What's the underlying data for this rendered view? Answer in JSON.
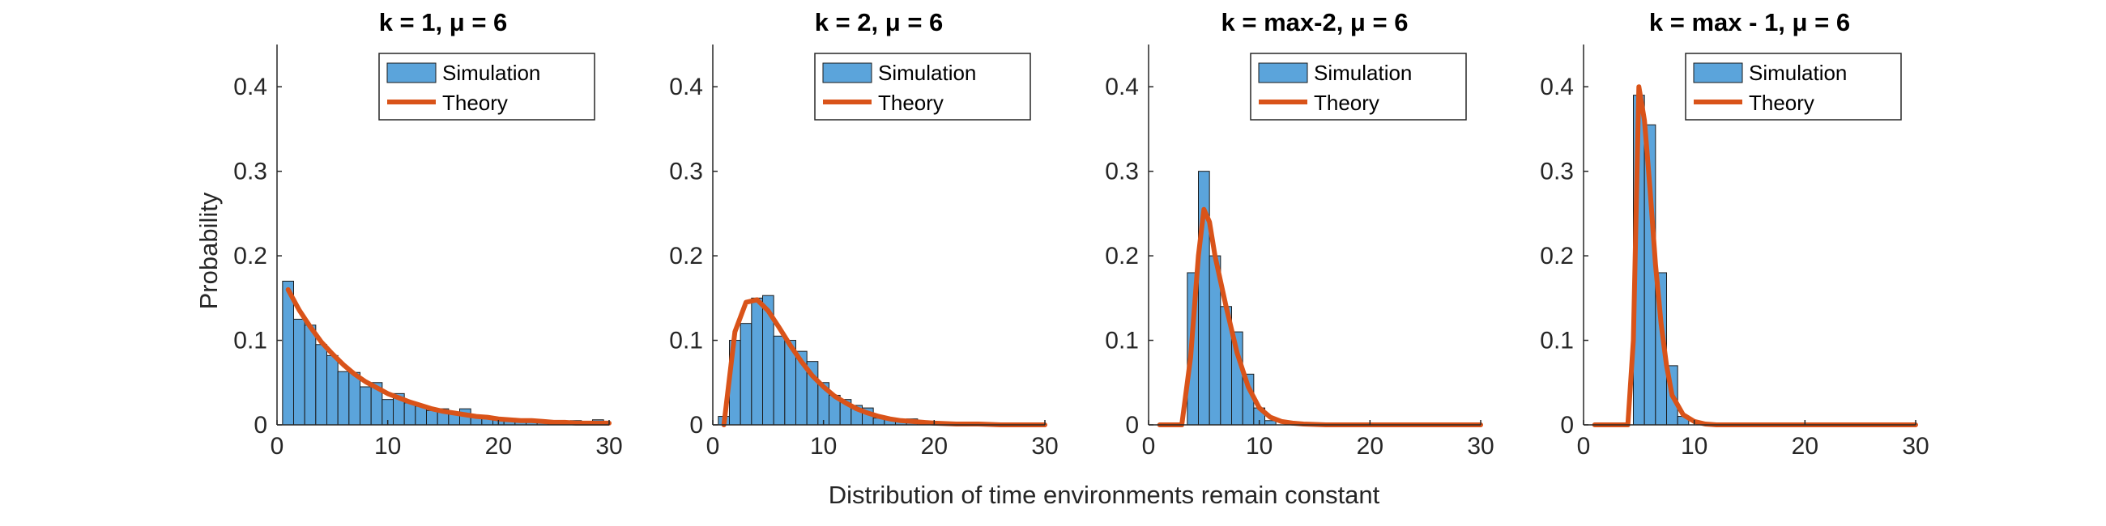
{
  "figure": {
    "xlabel": "Distribution of time environments remain constant",
    "ylabel": "Probability"
  },
  "colors": {
    "bar_fill": "#5BA4DB",
    "bar_edge": "#1a1a1a",
    "theory_line": "#D95319",
    "axis": "#262626"
  },
  "chart_data": [
    {
      "type": "bar",
      "title": "k = 1, μ = 6",
      "xlim": [
        0,
        30
      ],
      "ylim": [
        0,
        0.45
      ],
      "xticks": [
        0,
        10,
        20,
        30
      ],
      "yticks": [
        0,
        0.1,
        0.2,
        0.3,
        0.4
      ],
      "grid": false,
      "legend": {
        "placement": "top-right",
        "entries": [
          "Simulation",
          "Theory"
        ]
      },
      "series": [
        {
          "name": "Simulation",
          "type": "histogram",
          "bin_edges": [
            0.5,
            1.5,
            2.5,
            3.5,
            4.5,
            5.5,
            6.5,
            7.5,
            8.5,
            9.5,
            10.5,
            11.5,
            12.5,
            13.5,
            14.5,
            15.5,
            16.5,
            17.5,
            18.5,
            19.5,
            20.5,
            21.5,
            22.5,
            23.5,
            24.5,
            25.5,
            26.5,
            27.5,
            28.5,
            29.5
          ],
          "values": [
            0.17,
            0.125,
            0.118,
            0.095,
            0.082,
            0.063,
            0.062,
            0.045,
            0.05,
            0.03,
            0.037,
            0.026,
            0.022,
            0.017,
            0.019,
            0.015,
            0.019,
            0.01,
            0.009,
            0.006,
            0.005,
            0.004,
            0.004,
            0.005,
            0.003,
            0.003,
            0.005,
            0.002,
            0.006
          ]
        },
        {
          "name": "Theory",
          "type": "line",
          "x": [
            1,
            2,
            3,
            4,
            5,
            6,
            7,
            8,
            9,
            10,
            11,
            12,
            13,
            14,
            15,
            16,
            17,
            18,
            19,
            20,
            21,
            22,
            23,
            24,
            25,
            26,
            27,
            28,
            29,
            30
          ],
          "y": [
            0.16,
            0.136,
            0.116,
            0.098,
            0.084,
            0.071,
            0.06,
            0.051,
            0.044,
            0.037,
            0.032,
            0.027,
            0.023,
            0.019,
            0.016,
            0.014,
            0.012,
            0.01,
            0.009,
            0.007,
            0.006,
            0.005,
            0.005,
            0.004,
            0.003,
            0.003,
            0.002,
            0.002,
            0.002,
            0.002
          ]
        }
      ]
    },
    {
      "type": "bar",
      "title": "k = 2, μ = 6",
      "xlim": [
        0,
        30
      ],
      "ylim": [
        0,
        0.45
      ],
      "xticks": [
        0,
        10,
        20,
        30
      ],
      "yticks": [
        0,
        0.1,
        0.2,
        0.3,
        0.4
      ],
      "grid": false,
      "legend": {
        "placement": "top-right",
        "entries": [
          "Simulation",
          "Theory"
        ]
      },
      "series": [
        {
          "name": "Simulation",
          "type": "histogram",
          "bin_edges": [
            0.5,
            1.5,
            2.5,
            3.5,
            4.5,
            5.5,
            6.5,
            7.5,
            8.5,
            9.5,
            10.5,
            11.5,
            12.5,
            13.5,
            14.5,
            15.5,
            16.5,
            17.5,
            18.5
          ],
          "values": [
            0.01,
            0.1,
            0.12,
            0.15,
            0.153,
            0.105,
            0.1,
            0.087,
            0.075,
            0.05,
            0.035,
            0.03,
            0.023,
            0.02,
            0.008,
            0.006,
            0.004,
            0.007
          ]
        },
        {
          "name": "Theory",
          "type": "line",
          "x": [
            1,
            2,
            3,
            4,
            5,
            6,
            7,
            8,
            9,
            10,
            11,
            12,
            13,
            14,
            15,
            16,
            17,
            18,
            19,
            20,
            22,
            24,
            26,
            28,
            30
          ],
          "y": [
            0.0,
            0.11,
            0.145,
            0.148,
            0.135,
            0.115,
            0.094,
            0.075,
            0.058,
            0.045,
            0.034,
            0.026,
            0.019,
            0.014,
            0.01,
            0.007,
            0.005,
            0.004,
            0.003,
            0.002,
            0.001,
            0.001,
            0.0,
            0.0,
            0.0
          ]
        }
      ]
    },
    {
      "type": "bar",
      "title": "k = max-2, μ = 6",
      "xlim": [
        0,
        30
      ],
      "ylim": [
        0,
        0.45
      ],
      "xticks": [
        0,
        10,
        20,
        30
      ],
      "yticks": [
        0,
        0.1,
        0.2,
        0.3,
        0.4
      ],
      "grid": false,
      "legend": {
        "placement": "top-right",
        "entries": [
          "Simulation",
          "Theory"
        ]
      },
      "series": [
        {
          "name": "Simulation",
          "type": "histogram",
          "bin_edges": [
            3.5,
            4.5,
            5.5,
            6.5,
            7.5,
            8.5,
            9.5,
            10.5,
            11.5
          ],
          "values": [
            0.18,
            0.3,
            0.2,
            0.14,
            0.11,
            0.06,
            0.02,
            0.005
          ]
        },
        {
          "name": "Theory",
          "type": "line",
          "x": [
            1,
            2,
            3,
            3.8,
            4.5,
            5,
            5.5,
            6,
            7,
            8,
            9,
            10,
            11,
            12,
            13,
            14,
            16,
            20,
            25,
            30
          ],
          "y": [
            0.0,
            0.0,
            0.0,
            0.08,
            0.2,
            0.255,
            0.24,
            0.2,
            0.14,
            0.085,
            0.045,
            0.02,
            0.009,
            0.004,
            0.002,
            0.001,
            0.0,
            0.0,
            0.0,
            0.0
          ]
        }
      ]
    },
    {
      "type": "bar",
      "title": "k = max - 1, μ = 6",
      "xlim": [
        0,
        30
      ],
      "ylim": [
        0,
        0.45
      ],
      "xticks": [
        0,
        10,
        20,
        30
      ],
      "yticks": [
        0,
        0.1,
        0.2,
        0.3,
        0.4
      ],
      "grid": false,
      "legend": {
        "placement": "top-right",
        "entries": [
          "Simulation",
          "Theory"
        ]
      },
      "series": [
        {
          "name": "Simulation",
          "type": "histogram",
          "bin_edges": [
            4.5,
            5.5,
            6.5,
            7.5,
            8.5,
            9.5
          ],
          "values": [
            0.39,
            0.355,
            0.18,
            0.07,
            0.01
          ]
        },
        {
          "name": "Theory",
          "type": "line",
          "x": [
            1,
            2,
            3,
            4,
            4.5,
            5,
            5.5,
            6,
            6.5,
            7,
            7.5,
            8,
            9,
            10,
            11,
            12,
            15,
            20,
            25,
            30
          ],
          "y": [
            0.0,
            0.0,
            0.0,
            0.0,
            0.1,
            0.4,
            0.36,
            0.28,
            0.19,
            0.12,
            0.07,
            0.035,
            0.012,
            0.004,
            0.001,
            0.0,
            0.0,
            0.0,
            0.0,
            0.0
          ]
        }
      ]
    }
  ]
}
